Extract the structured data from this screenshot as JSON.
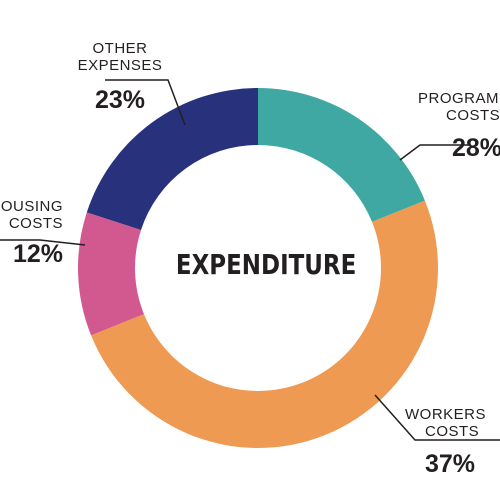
{
  "chart_data": {
    "type": "pie",
    "title": "EXPENDITURE",
    "slices": [
      {
        "label_lines": [
          "PROGRAM",
          "COSTS"
        ],
        "value_label": "28%",
        "value": 28,
        "color": "#3fa8a3"
      },
      {
        "label_lines": [
          "WORKERS",
          "COSTS"
        ],
        "value_label": "37%",
        "value": 37,
        "color": "#ee9a52"
      },
      {
        "label_lines": [
          "HOUSING",
          "COSTS"
        ],
        "value_label": "12%",
        "value": 12,
        "color": "#d2598f"
      },
      {
        "label_lines": [
          "OTHER",
          "EXPENSES"
        ],
        "value_label": "23%",
        "value": 23,
        "color": "#28317c"
      }
    ]
  }
}
